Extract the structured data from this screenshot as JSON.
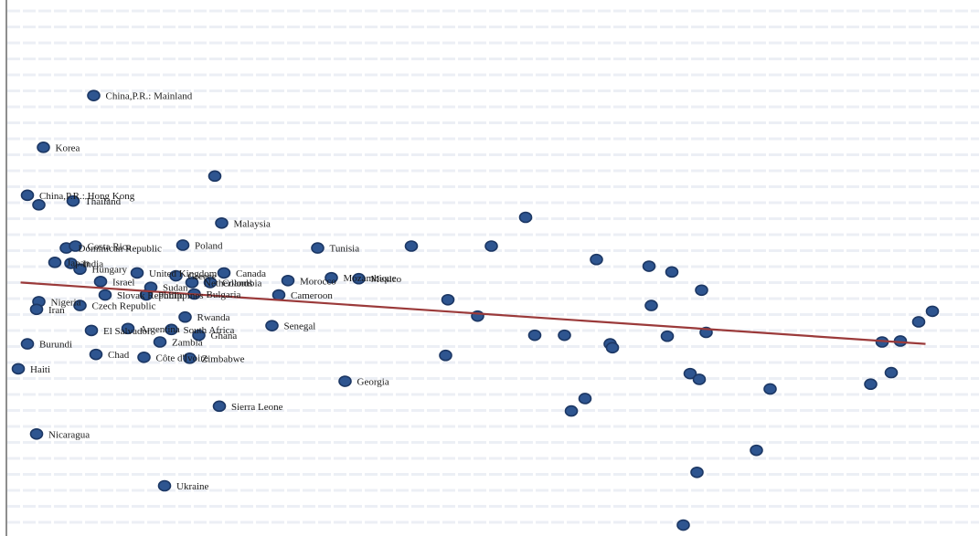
{
  "chart_data": {
    "type": "scatter",
    "title": "",
    "xlabel": "",
    "ylabel": "",
    "grid": true,
    "legend": "none",
    "colors": {
      "points": "#2e5590",
      "point_edge": "#1c3764",
      "trend": "#9b3a3a",
      "grid": "#dde3ee",
      "axis": "#444444"
    },
    "trendline": {
      "x": [
        0.9,
        40.5
      ],
      "y": [
        0.032,
        -0.032
      ]
    },
    "points": [
      {
        "x": 4.1,
        "y": 0.227,
        "label": "China,P.R.: Mainland"
      },
      {
        "x": 1.9,
        "y": 0.173,
        "label": "Korea"
      },
      {
        "x": 1.2,
        "y": 0.123,
        "label": "China,P.R.: Hong Kong"
      },
      {
        "x": 1.7,
        "y": 0.113,
        "label": ""
      },
      {
        "x": 3.2,
        "y": 0.117,
        "label": "Thailand"
      },
      {
        "x": 9.4,
        "y": 0.143,
        "label": ""
      },
      {
        "x": 9.7,
        "y": 0.094,
        "label": "Malaysia"
      },
      {
        "x": 23.0,
        "y": 0.1,
        "label": ""
      },
      {
        "x": 8.0,
        "y": 0.071,
        "label": "Poland"
      },
      {
        "x": 13.9,
        "y": 0.068,
        "label": "Tunisia"
      },
      {
        "x": 18.0,
        "y": 0.07,
        "label": ""
      },
      {
        "x": 21.5,
        "y": 0.07,
        "label": ""
      },
      {
        "x": 26.1,
        "y": 0.056,
        "label": ""
      },
      {
        "x": 28.4,
        "y": 0.049,
        "label": ""
      },
      {
        "x": 29.4,
        "y": 0.043,
        "label": ""
      },
      {
        "x": 30.7,
        "y": 0.024,
        "label": ""
      },
      {
        "x": 19.6,
        "y": 0.014,
        "label": ""
      },
      {
        "x": 20.9,
        "y": -0.003,
        "label": ""
      },
      {
        "x": 28.5,
        "y": 0.008,
        "label": ""
      },
      {
        "x": 29.2,
        "y": -0.024,
        "label": ""
      },
      {
        "x": 30.9,
        "y": -0.02,
        "label": ""
      },
      {
        "x": 23.4,
        "y": -0.023,
        "label": ""
      },
      {
        "x": 24.7,
        "y": -0.023,
        "label": ""
      },
      {
        "x": 26.7,
        "y": -0.032,
        "label": ""
      },
      {
        "x": 26.8,
        "y": -0.036,
        "label": ""
      },
      {
        "x": 19.5,
        "y": -0.044,
        "label": ""
      },
      {
        "x": 40.8,
        "y": 0.002,
        "label": ""
      },
      {
        "x": 40.2,
        "y": -0.009,
        "label": ""
      },
      {
        "x": 38.6,
        "y": -0.03,
        "label": ""
      },
      {
        "x": 39.4,
        "y": -0.029,
        "label": ""
      },
      {
        "x": 39.0,
        "y": -0.062,
        "label": ""
      },
      {
        "x": 38.1,
        "y": -0.074,
        "label": ""
      },
      {
        "x": 30.2,
        "y": -0.063,
        "label": ""
      },
      {
        "x": 30.6,
        "y": -0.069,
        "label": ""
      },
      {
        "x": 33.7,
        "y": -0.079,
        "label": ""
      },
      {
        "x": 25.6,
        "y": -0.089,
        "label": ""
      },
      {
        "x": 25.0,
        "y": -0.102,
        "label": ""
      },
      {
        "x": 33.1,
        "y": -0.143,
        "label": ""
      },
      {
        "x": 30.5,
        "y": -0.166,
        "label": ""
      },
      {
        "x": 29.9,
        "y": -0.221,
        "label": ""
      },
      {
        "x": 9.8,
        "y": 0.042,
        "label": "Canada"
      },
      {
        "x": 12.6,
        "y": 0.034,
        "label": "Morocco"
      },
      {
        "x": 14.5,
        "y": 0.037,
        "label": "Mozambique"
      },
      {
        "x": 15.7,
        "y": 0.036,
        "label": "Mexico"
      },
      {
        "x": 12.2,
        "y": 0.019,
        "label": "Cameroon"
      },
      {
        "x": 11.9,
        "y": -0.013,
        "label": "Senegal"
      },
      {
        "x": 15.1,
        "y": -0.071,
        "label": "Georgia"
      },
      {
        "x": 9.6,
        "y": -0.097,
        "label": "Sierra Leone"
      },
      {
        "x": 7.2,
        "y": -0.18,
        "label": "Ukraine"
      },
      {
        "x": 1.6,
        "y": -0.126,
        "label": "Nicaragua"
      },
      {
        "x": 0.8,
        "y": -0.058,
        "label": "Haiti"
      },
      {
        "x": 1.2,
        "y": -0.032,
        "label": "Burundi"
      },
      {
        "x": 4.2,
        "y": -0.043,
        "label": "Chad"
      },
      {
        "x": 6.3,
        "y": -0.046,
        "label": "Côte d'Ivoire"
      },
      {
        "x": 8.3,
        "y": -0.047,
        "label": "Zimbabwe"
      },
      {
        "x": 8.7,
        "y": -0.023,
        "label": "Ghana"
      },
      {
        "x": 7.0,
        "y": -0.03,
        "label": "Zambia"
      },
      {
        "x": 8.1,
        "y": -0.004,
        "label": "Rwanda"
      },
      {
        "x": 8.4,
        "y": 0.032,
        "label": "Netherlands"
      },
      {
        "x": 7.7,
        "y": 0.039,
        "label": "Greece"
      },
      {
        "x": 8.5,
        "y": 0.02,
        "label": "Bulgaria"
      },
      {
        "x": 6.4,
        "y": 0.019,
        "label": "Philippines"
      },
      {
        "x": 6.6,
        "y": 0.027,
        "label": "Sudan"
      },
      {
        "x": 6.0,
        "y": 0.042,
        "label": "United Kingdom"
      },
      {
        "x": 9.2,
        "y": 0.032,
        "label": "Colombia"
      },
      {
        "x": 2.9,
        "y": 0.068,
        "label": "Dominican Republic"
      },
      {
        "x": 3.1,
        "y": 0.052,
        "label": "India"
      },
      {
        "x": 3.5,
        "y": 0.046,
        "label": "Hungary"
      },
      {
        "x": 2.4,
        "y": 0.053,
        "label": "Japan"
      },
      {
        "x": 3.3,
        "y": 0.07,
        "label": "Costa Rica"
      },
      {
        "x": 4.4,
        "y": 0.033,
        "label": "Israel"
      },
      {
        "x": 4.6,
        "y": 0.019,
        "label": "Slovak Republic"
      },
      {
        "x": 3.5,
        "y": 0.008,
        "label": "Czech Republic"
      },
      {
        "x": 4.0,
        "y": -0.018,
        "label": "El Salvador"
      },
      {
        "x": 5.6,
        "y": -0.016,
        "label": "Argentina"
      },
      {
        "x": 7.5,
        "y": -0.017,
        "label": "South Africa"
      },
      {
        "x": 1.7,
        "y": 0.012,
        "label": "Nigeria"
      },
      {
        "x": 1.6,
        "y": 0.004,
        "label": "Iran"
      }
    ]
  }
}
